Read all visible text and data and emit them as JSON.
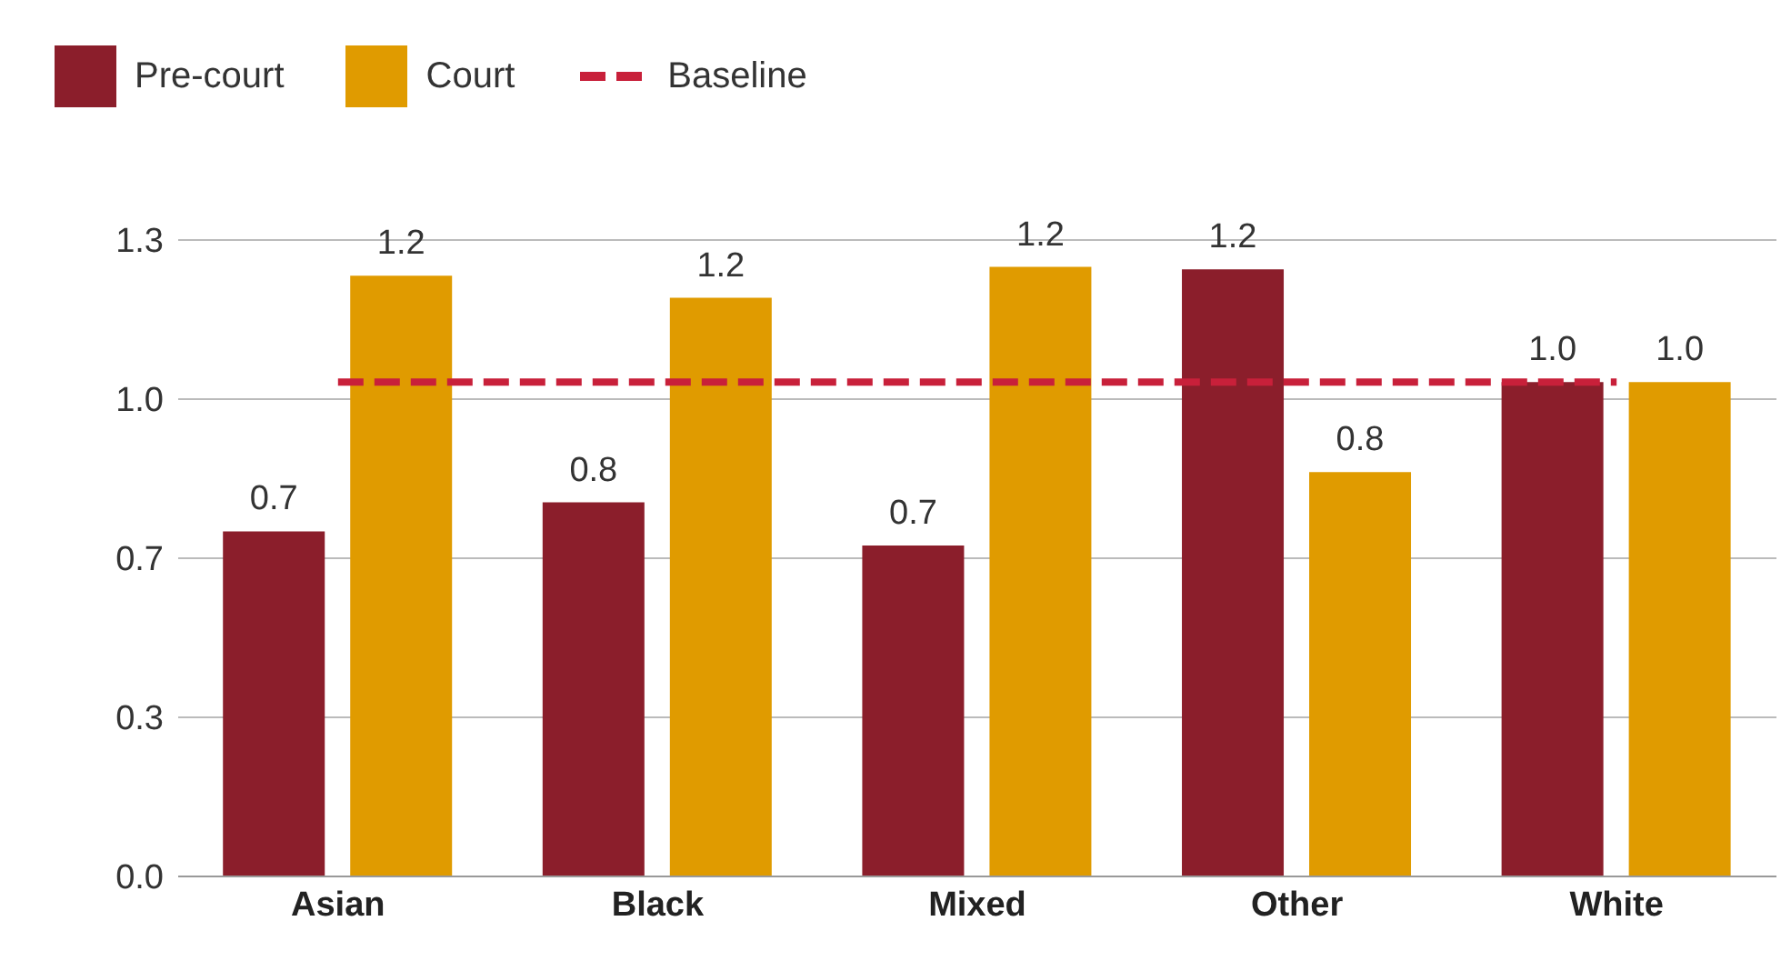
{
  "chart_data": {
    "type": "bar",
    "categories": [
      "Asian",
      "Black",
      "Mixed",
      "Other",
      "White"
    ],
    "series": [
      {
        "name": "Pre-court",
        "color": "#8b1e2b",
        "values": [
          0.705,
          0.764,
          0.676,
          1.24,
          1.01
        ],
        "value_labels": [
          "0.7",
          "0.8",
          "0.7",
          "1.2",
          "1.0"
        ]
      },
      {
        "name": "Court",
        "color": "#e09b00",
        "values": [
          1.227,
          1.182,
          1.245,
          0.826,
          1.01
        ],
        "value_labels": [
          "1.2",
          "1.2",
          "1.2",
          "0.8",
          "1.0"
        ]
      },
      {
        "name": "Baseline",
        "type": "line",
        "color": "#c8203a",
        "line_style": "dashed",
        "marker": "none",
        "values": [
          1.01,
          1.01,
          1.01,
          1.01,
          1.01
        ]
      }
    ],
    "ylim": [
      0,
      1.3
    ],
    "yticks": [
      {
        "value": 0,
        "label": "0.0"
      },
      {
        "value": 0.325,
        "label": "0.3"
      },
      {
        "value": 0.65,
        "label": "0.7"
      },
      {
        "value": 0.975,
        "label": "1.0"
      },
      {
        "value": 1.3,
        "label": "1.3"
      }
    ],
    "grid": "y",
    "legend": "top left"
  }
}
